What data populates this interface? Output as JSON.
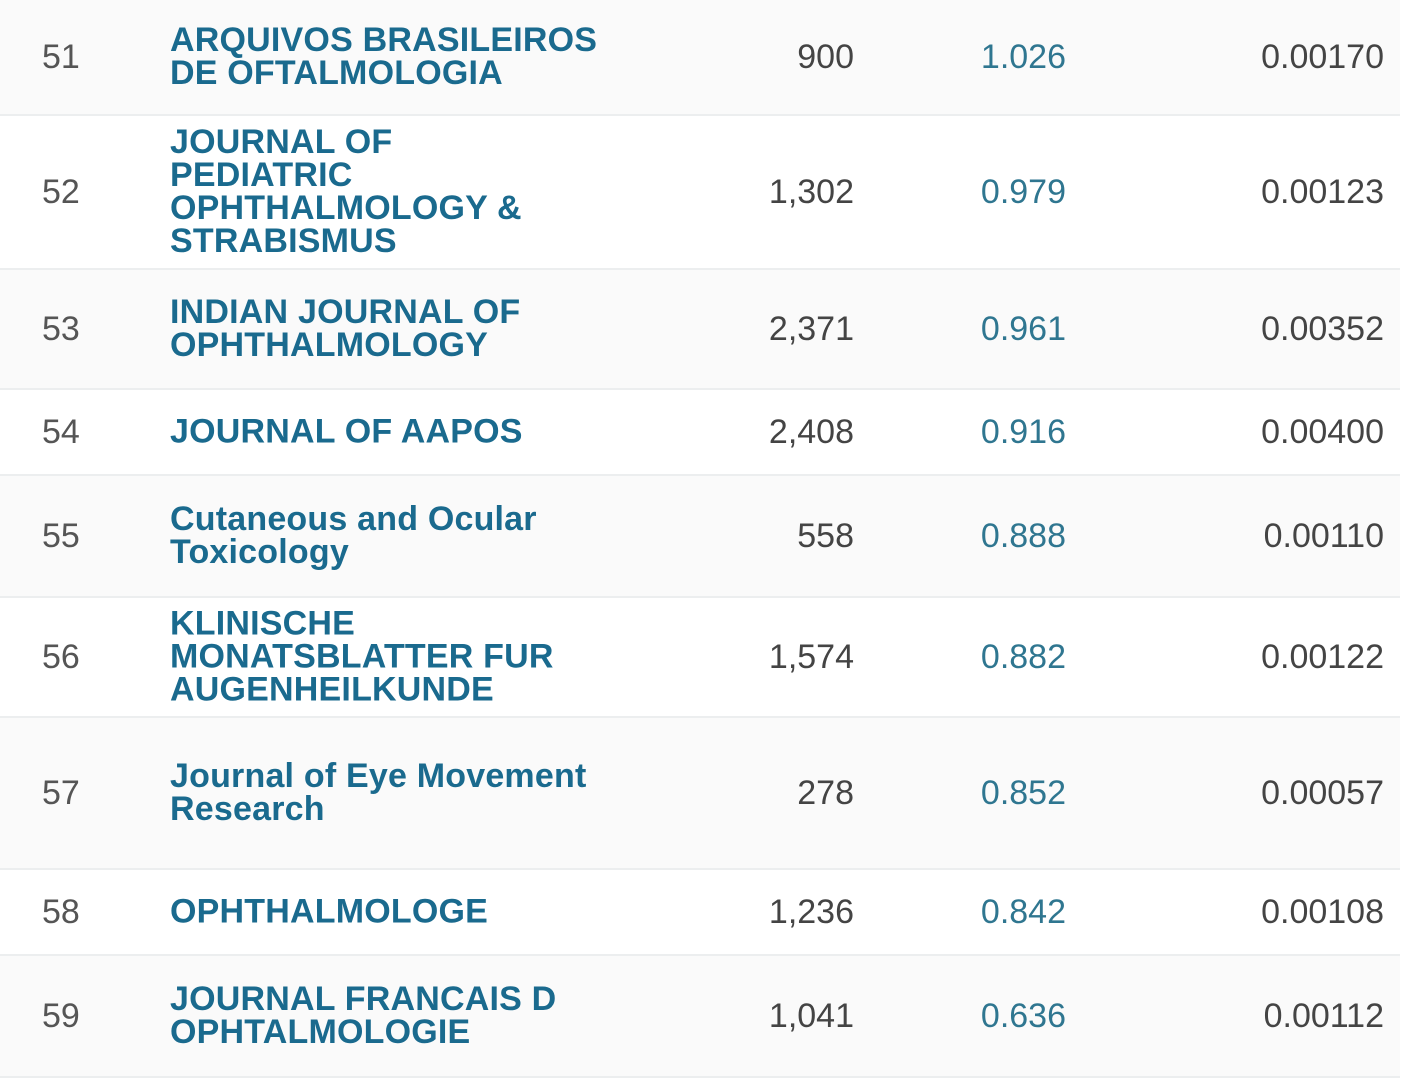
{
  "rows": [
    {
      "rank": "51",
      "title": "ARQUIVOS BRASILEIROS DE OFTALMOLOGIA",
      "cites": "900",
      "jif": "1.026",
      "eigenfactor": "0.00170"
    },
    {
      "rank": "52",
      "title": "JOURNAL OF PEDIATRIC OPHTHALMOLOGY & STRABISMUS",
      "cites": "1,302",
      "jif": "0.979",
      "eigenfactor": "0.00123"
    },
    {
      "rank": "53",
      "title": "INDIAN JOURNAL OF OPHTHALMOLOGY",
      "cites": "2,371",
      "jif": "0.961",
      "eigenfactor": "0.00352"
    },
    {
      "rank": "54",
      "title": "JOURNAL OF AAPOS",
      "cites": "2,408",
      "jif": "0.916",
      "eigenfactor": "0.00400"
    },
    {
      "rank": "55",
      "title": "Cutaneous and Ocular Toxicology",
      "cites": "558",
      "jif": "0.888",
      "eigenfactor": "0.00110"
    },
    {
      "rank": "56",
      "title": "KLINISCHE MONATSBLATTER FUR AUGENHEILKUNDE",
      "cites": "1,574",
      "jif": "0.882",
      "eigenfactor": "0.00122"
    },
    {
      "rank": "57",
      "title": "Journal of Eye Movement Research",
      "cites": "278",
      "jif": "0.852",
      "eigenfactor": "0.00057"
    },
    {
      "rank": "58",
      "title": "OPHTHALMOLOGE",
      "cites": "1,236",
      "jif": "0.842",
      "eigenfactor": "0.00108"
    },
    {
      "rank": "59",
      "title": "JOURNAL FRANCAIS D OPHTALMOLOGIE",
      "cites": "1,041",
      "jif": "0.636",
      "eigenfactor": "0.00112"
    }
  ]
}
